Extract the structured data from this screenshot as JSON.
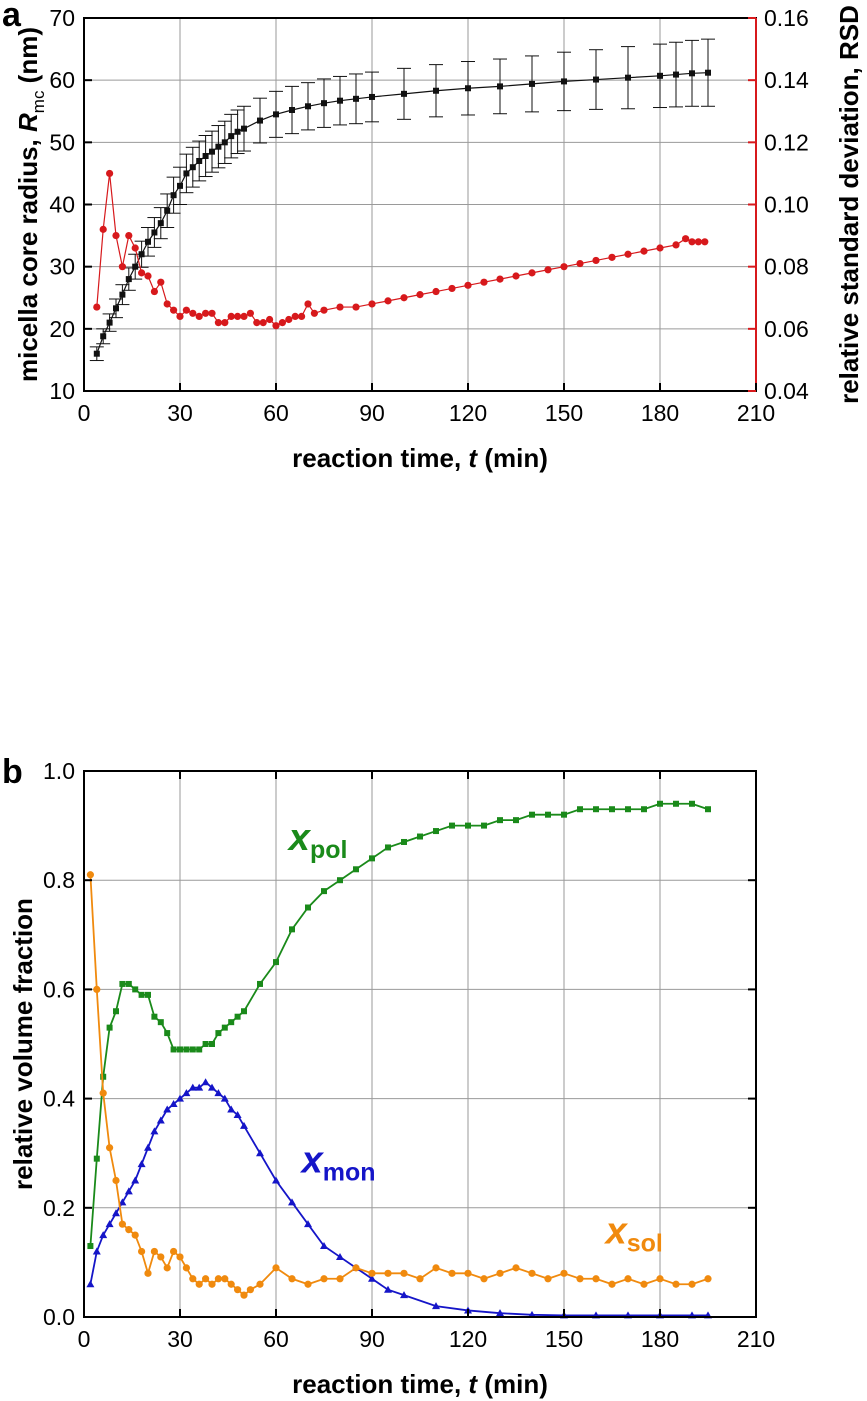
{
  "chart_data": [
    {
      "panel": "a",
      "type": "scatter",
      "xlabel": "reaction time, t (min)",
      "xlabel_parts": [
        "reaction time, ",
        "t",
        " (min)"
      ],
      "ylabel_parts": [
        "micella core radius, ",
        "R",
        "mc",
        " (nm)"
      ],
      "y2label": "relative standard deviation, RSD",
      "xlim": [
        0,
        210
      ],
      "ylim": [
        10,
        70
      ],
      "y2lim": [
        0.04,
        0.16
      ],
      "xticks": [
        0,
        30,
        60,
        90,
        120,
        150,
        180,
        210
      ],
      "yticks": [
        10,
        20,
        30,
        40,
        50,
        60,
        70
      ],
      "y2ticks": [
        "0.04",
        "0.06",
        "0.08",
        "0.10",
        "0.12",
        "0.14",
        "0.16"
      ],
      "grid": true,
      "colors": {
        "radius": "#111111",
        "rsd": "#d7191c",
        "right_axis": "#d7191c"
      },
      "series": [
        {
          "name": "",
          "axis": "left",
          "marker": "square",
          "error_bars": true,
          "x": [
            4,
            6,
            8,
            10,
            12,
            14,
            16,
            18,
            20,
            22,
            24,
            26,
            28,
            30,
            32,
            34,
            36,
            38,
            40,
            42,
            44,
            46,
            48,
            50,
            55,
            60,
            65,
            70,
            75,
            80,
            85,
            90,
            100,
            110,
            120,
            130,
            140,
            150,
            160,
            170,
            180,
            185,
            190,
            195
          ],
          "y": [
            16,
            18.8,
            21,
            23.3,
            25.5,
            28,
            30,
            32,
            34,
            35.5,
            37,
            39,
            41.5,
            43,
            45,
            46,
            47,
            47.8,
            48.5,
            49.3,
            50,
            51,
            51.7,
            52.2,
            53.5,
            54.5,
            55.2,
            55.8,
            56.3,
            56.7,
            57,
            57.3,
            57.8,
            58.3,
            58.7,
            59,
            59.4,
            59.8,
            60.1,
            60.4,
            60.7,
            60.9,
            61.1,
            61.2
          ],
          "error": [
            1.1,
            1.2,
            1.4,
            1.5,
            1.6,
            1.8,
            2,
            2.1,
            2.3,
            2.4,
            2.5,
            2.7,
            2.9,
            3,
            3.1,
            3.2,
            3.2,
            3.3,
            3.3,
            3.4,
            3.4,
            3.5,
            3.5,
            3.6,
            3.6,
            3.7,
            3.8,
            3.8,
            3.9,
            3.9,
            4,
            4,
            4.1,
            4.2,
            4.3,
            4.4,
            4.5,
            4.7,
            4.8,
            5,
            5.1,
            5.2,
            5.3,
            5.4
          ]
        },
        {
          "name": "",
          "axis": "right",
          "marker": "circle",
          "x": [
            4,
            6,
            8,
            10,
            12,
            14,
            16,
            18,
            20,
            22,
            24,
            26,
            28,
            30,
            32,
            34,
            36,
            38,
            40,
            42,
            44,
            46,
            48,
            50,
            52,
            54,
            56,
            58,
            60,
            62,
            64,
            66,
            68,
            70,
            72,
            75,
            80,
            85,
            90,
            95,
            100,
            105,
            110,
            115,
            120,
            125,
            130,
            135,
            140,
            145,
            150,
            155,
            160,
            165,
            170,
            175,
            180,
            185,
            188,
            190,
            192,
            194
          ],
          "y": [
            0.067,
            0.092,
            0.11,
            0.09,
            0.08,
            0.09,
            0.086,
            0.078,
            0.077,
            0.072,
            0.075,
            0.068,
            0.066,
            0.064,
            0.066,
            0.065,
            0.064,
            0.065,
            0.065,
            0.062,
            0.062,
            0.064,
            0.064,
            0.064,
            0.065,
            0.062,
            0.062,
            0.063,
            0.061,
            0.062,
            0.063,
            0.064,
            0.064,
            0.068,
            0.065,
            0.066,
            0.067,
            0.067,
            0.068,
            0.069,
            0.07,
            0.071,
            0.072,
            0.073,
            0.074,
            0.075,
            0.076,
            0.077,
            0.078,
            0.079,
            0.08,
            0.081,
            0.082,
            0.083,
            0.084,
            0.085,
            0.086,
            0.087,
            0.089,
            0.088,
            0.088,
            0.088
          ]
        }
      ]
    },
    {
      "panel": "b",
      "type": "line",
      "xlabel": "reaction time, t (min)",
      "xlabel_parts": [
        "reaction time, ",
        "t",
        " (min)"
      ],
      "ylabel": "relative volume fraction",
      "xlim": [
        0,
        210
      ],
      "ylim": [
        0,
        1
      ],
      "xticks": [
        0,
        30,
        60,
        90,
        120,
        150,
        180,
        210
      ],
      "yticks": [
        "0.0",
        "0.2",
        "0.4",
        "0.6",
        "0.8",
        "1.0"
      ],
      "grid": true,
      "series": [
        {
          "name": "x_pol",
          "label_main": "x",
          "label_sub": "pol",
          "color": "#1a8a1a",
          "marker": "square",
          "x": [
            2,
            4,
            6,
            8,
            10,
            12,
            14,
            16,
            18,
            20,
            22,
            24,
            26,
            28,
            30,
            32,
            34,
            36,
            38,
            40,
            42,
            44,
            46,
            48,
            50,
            55,
            60,
            65,
            70,
            75,
            80,
            85,
            90,
            95,
            100,
            105,
            110,
            115,
            120,
            125,
            130,
            135,
            140,
            145,
            150,
            155,
            160,
            165,
            170,
            175,
            180,
            185,
            190,
            195
          ],
          "y": [
            0.13,
            0.29,
            0.44,
            0.53,
            0.56,
            0.61,
            0.61,
            0.6,
            0.59,
            0.59,
            0.55,
            0.54,
            0.52,
            0.49,
            0.49,
            0.49,
            0.49,
            0.49,
            0.5,
            0.5,
            0.52,
            0.53,
            0.54,
            0.55,
            0.56,
            0.61,
            0.65,
            0.71,
            0.75,
            0.78,
            0.8,
            0.82,
            0.84,
            0.86,
            0.87,
            0.88,
            0.89,
            0.9,
            0.9,
            0.9,
            0.91,
            0.91,
            0.92,
            0.92,
            0.92,
            0.93,
            0.93,
            0.93,
            0.93,
            0.93,
            0.94,
            0.94,
            0.94,
            0.93
          ]
        },
        {
          "name": "x_mon",
          "label_main": "x",
          "label_sub": "mon",
          "color": "#1515c8",
          "marker": "triangle",
          "x": [
            2,
            4,
            6,
            8,
            10,
            12,
            14,
            16,
            18,
            20,
            22,
            24,
            26,
            28,
            30,
            32,
            34,
            36,
            38,
            40,
            42,
            44,
            46,
            48,
            50,
            55,
            60,
            65,
            70,
            75,
            80,
            85,
            90,
            95,
            100,
            110,
            120,
            130,
            140,
            150,
            160,
            170,
            180,
            190,
            195
          ],
          "y": [
            0.06,
            0.12,
            0.15,
            0.17,
            0.19,
            0.21,
            0.23,
            0.25,
            0.28,
            0.31,
            0.34,
            0.36,
            0.38,
            0.39,
            0.4,
            0.41,
            0.42,
            0.42,
            0.43,
            0.42,
            0.41,
            0.4,
            0.38,
            0.37,
            0.35,
            0.3,
            0.25,
            0.21,
            0.17,
            0.13,
            0.11,
            0.09,
            0.07,
            0.05,
            0.04,
            0.02,
            0.012,
            0.007,
            0.004,
            0.003,
            0.003,
            0.003,
            0.003,
            0.003,
            0.003
          ]
        },
        {
          "name": "x_sol",
          "label_main": "x",
          "label_sub": "sol",
          "color": "#f08a0e",
          "marker": "circle",
          "x": [
            2,
            4,
            6,
            8,
            10,
            12,
            14,
            16,
            18,
            20,
            22,
            24,
            26,
            28,
            30,
            32,
            34,
            36,
            38,
            40,
            42,
            44,
            46,
            48,
            50,
            52,
            55,
            60,
            65,
            70,
            75,
            80,
            85,
            90,
            95,
            100,
            105,
            110,
            115,
            120,
            125,
            130,
            135,
            140,
            145,
            150,
            155,
            160,
            165,
            170,
            175,
            180,
            185,
            190,
            195
          ],
          "y": [
            0.81,
            0.6,
            0.41,
            0.31,
            0.25,
            0.17,
            0.16,
            0.15,
            0.12,
            0.08,
            0.12,
            0.11,
            0.09,
            0.12,
            0.11,
            0.09,
            0.07,
            0.06,
            0.07,
            0.06,
            0.07,
            0.07,
            0.06,
            0.05,
            0.04,
            0.05,
            0.06,
            0.09,
            0.07,
            0.06,
            0.07,
            0.07,
            0.09,
            0.08,
            0.08,
            0.08,
            0.07,
            0.09,
            0.08,
            0.08,
            0.07,
            0.08,
            0.09,
            0.08,
            0.07,
            0.08,
            0.07,
            0.07,
            0.06,
            0.07,
            0.06,
            0.07,
            0.06,
            0.06,
            0.07
          ]
        }
      ]
    }
  ]
}
